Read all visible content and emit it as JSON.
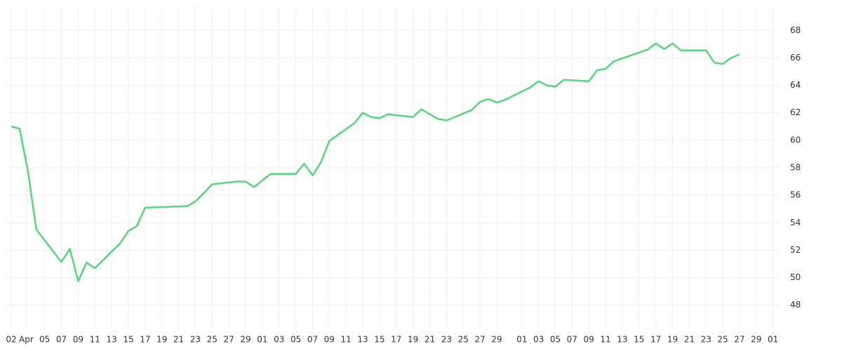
{
  "chart_data": {
    "type": "line",
    "x": [
      0,
      1,
      2,
      3,
      6,
      7,
      8,
      9,
      10,
      13,
      14,
      15,
      16,
      21,
      22,
      23,
      24,
      27,
      28,
      29,
      31,
      34,
      35,
      36,
      37,
      38,
      41,
      42,
      43,
      44,
      45,
      48,
      49,
      50,
      51,
      52,
      55,
      56,
      57,
      58,
      59,
      62,
      63,
      64,
      65,
      66,
      69,
      70,
      71,
      72,
      76,
      77,
      78,
      79,
      80,
      83,
      84,
      85,
      86,
      87
    ],
    "series": [
      {
        "color": "#57d57e",
        "values": [
          61.0,
          60.85,
          57.75,
          53.5,
          51.15,
          52.1,
          49.75,
          51.1,
          50.7,
          52.5,
          53.4,
          53.75,
          55.1,
          55.2,
          55.55,
          56.15,
          56.8,
          57.0,
          57.0,
          56.6,
          57.55,
          57.55,
          58.3,
          57.45,
          58.4,
          59.95,
          61.25,
          62.0,
          61.7,
          61.6,
          61.9,
          61.7,
          62.25,
          61.9,
          61.55,
          61.45,
          62.2,
          62.8,
          63.0,
          62.75,
          62.95,
          63.85,
          64.3,
          64.0,
          63.9,
          64.4,
          64.3,
          65.1,
          65.2,
          65.75,
          66.6,
          67.05,
          66.65,
          67.05,
          66.55,
          66.55,
          65.65,
          65.55,
          66.0,
          66.25
        ]
      }
    ],
    "xlim": [
      -0.5,
      91.7
    ],
    "xticks": [
      {
        "value": 0,
        "label": "02"
      },
      {
        "value": 1.8,
        "label": "Apr"
      },
      {
        "value": 4,
        "label": "05"
      },
      {
        "value": 6,
        "label": "07"
      },
      {
        "value": 8,
        "label": "09"
      },
      {
        "value": 10,
        "label": "11"
      },
      {
        "value": 12,
        "label": "13"
      },
      {
        "value": 14,
        "label": "15"
      },
      {
        "value": 16,
        "label": "17"
      },
      {
        "value": 18,
        "label": "19"
      },
      {
        "value": 20,
        "label": "21"
      },
      {
        "value": 22,
        "label": "23"
      },
      {
        "value": 24,
        "label": "25"
      },
      {
        "value": 26,
        "label": "27"
      },
      {
        "value": 28,
        "label": "29"
      },
      {
        "value": 30,
        "label": "01"
      },
      {
        "value": 32,
        "label": "03"
      },
      {
        "value": 34,
        "label": "05"
      },
      {
        "value": 36,
        "label": "07"
      },
      {
        "value": 38,
        "label": "09"
      },
      {
        "value": 40,
        "label": "11"
      },
      {
        "value": 42,
        "label": "13"
      },
      {
        "value": 44,
        "label": "15"
      },
      {
        "value": 46,
        "label": "17"
      },
      {
        "value": 48,
        "label": "19"
      },
      {
        "value": 50,
        "label": "21"
      },
      {
        "value": 52,
        "label": "23"
      },
      {
        "value": 54,
        "label": "25"
      },
      {
        "value": 56,
        "label": "27"
      },
      {
        "value": 58,
        "label": "29"
      },
      {
        "value": 61,
        "label": "01"
      },
      {
        "value": 63,
        "label": "03"
      },
      {
        "value": 65,
        "label": "05"
      },
      {
        "value": 67,
        "label": "07"
      },
      {
        "value": 69,
        "label": "09"
      },
      {
        "value": 71,
        "label": "11"
      },
      {
        "value": 73,
        "label": "13"
      },
      {
        "value": 75,
        "label": "15"
      },
      {
        "value": 77,
        "label": "17"
      },
      {
        "value": 79,
        "label": "19"
      },
      {
        "value": 81,
        "label": "21"
      },
      {
        "value": 83,
        "label": "23"
      },
      {
        "value": 85,
        "label": "25"
      },
      {
        "value": 87,
        "label": "27"
      },
      {
        "value": 89,
        "label": "29"
      },
      {
        "value": 91,
        "label": "01"
      }
    ],
    "ylim": [
      46.3,
      69.7
    ],
    "yticks": [
      48,
      50,
      52,
      54,
      56,
      58,
      60,
      62,
      64,
      66,
      68
    ],
    "grid": true
  }
}
